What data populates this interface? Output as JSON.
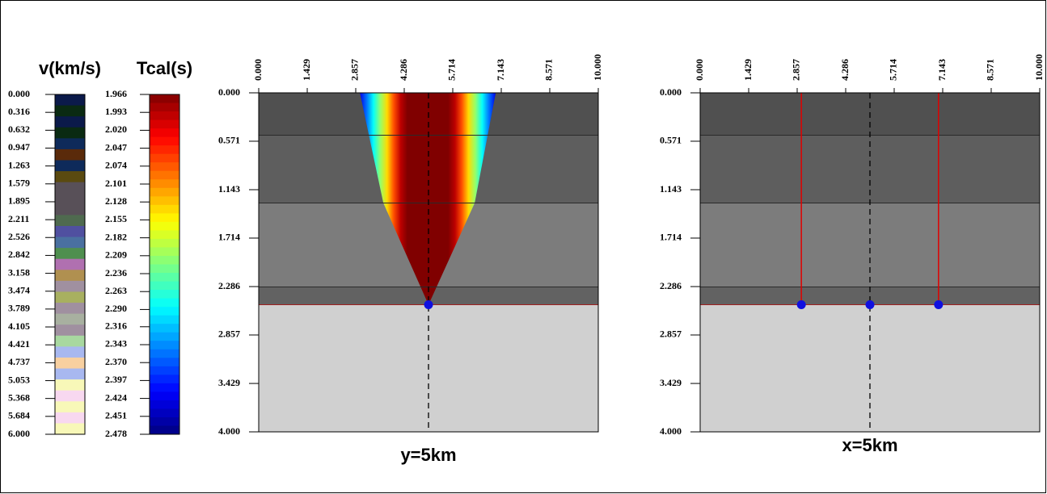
{
  "chart_data": [
    {
      "type": "colorbar",
      "title": "v(km/s)",
      "lim": [
        0,
        6
      ],
      "ticks": [
        {
          "value": 0,
          "label": "0.000"
        },
        0.316,
        0.632,
        0.947,
        1.263,
        1.579,
        1.895,
        2.211,
        2.526,
        2.842,
        3.158,
        3.474,
        3.789,
        4.105,
        4.421,
        4.737,
        5.053,
        5.368,
        5.684,
        {
          "value": 6,
          "label": "6.000"
        }
      ],
      "colors": [
        "#0b1a4a",
        "#0a2a12",
        "#0b1a4a",
        "#0a2a12",
        "#0e2a5a",
        "#5a2a0a",
        "#0e2a5a",
        "#5a4a10",
        "#585058",
        "#585058",
        "#585058",
        "#4f6a4f",
        "#5050a0",
        "#4a70a0",
        "#4f8f4f",
        "#b070b0",
        "#b09050",
        "#a090a0",
        "#a8b060",
        "#a090a0",
        "#a8b0a0",
        "#a090a0",
        "#a8d8a0",
        "#a8b8f0",
        "#f8d0a0",
        "#a8b8f0",
        "#f8f8b8",
        "#f8d8f0",
        "#f8f8b8",
        "#f8d8f0",
        "#f8f8b8"
      ]
    },
    {
      "type": "colorbar",
      "title": "Tcal(s)",
      "lim": [
        1.966,
        2.478
      ],
      "colormap": "jet_r",
      "ticks": [
        1.966,
        1.993,
        {
          "value": 2.02,
          "label": "2.020"
        },
        2.047,
        2.074,
        2.101,
        2.128,
        2.155,
        2.182,
        2.209,
        2.236,
        2.263,
        {
          "value": 2.29,
          "label": "2.290"
        },
        2.316,
        2.343,
        {
          "value": 2.37,
          "label": "2.370"
        },
        2.397,
        2.424,
        2.451,
        2.478
      ]
    },
    {
      "type": "section",
      "caption": "y=5km",
      "xlim": [
        0,
        10
      ],
      "ylim": [
        0,
        4
      ],
      "xticks": [
        {
          "value": 0,
          "label": "0.000"
        },
        1.429,
        2.857,
        4.286,
        5.714,
        7.143,
        8.571,
        {
          "value": 10,
          "label": "10.000"
        }
      ],
      "yticks": [
        {
          "value": 0,
          "label": "0.000"
        },
        0.571,
        1.143,
        1.714,
        2.286,
        2.857,
        3.429,
        {
          "value": 4,
          "label": "4.000"
        }
      ],
      "layer_tops": [
        0,
        0.5,
        1.3,
        2.29,
        2.5
      ],
      "layer_colors": [
        "#505050",
        "#5e5e5e",
        "#7c7c7c",
        "#626262",
        "#d0d0d0"
      ],
      "fan": {
        "x": [
          2.98,
          3.67,
          5,
          6.36,
          6.98
        ],
        "y": [
          0,
          1.3,
          2.5,
          1.3,
          0
        ]
      },
      "dashed_x": 5,
      "points": {
        "x": [
          5
        ],
        "y": [
          2.5
        ]
      },
      "point_color": "#1010e0"
    },
    {
      "type": "section",
      "caption": "x=5km",
      "xlim": [
        0,
        10
      ],
      "ylim": [
        0,
        4
      ],
      "xticks": [
        {
          "value": 0,
          "label": "0.000"
        },
        1.429,
        2.857,
        4.286,
        5.714,
        7.143,
        8.571,
        {
          "value": 10,
          "label": "10.000"
        }
      ],
      "yticks": [
        {
          "value": 0,
          "label": "0.000"
        },
        0.571,
        1.143,
        1.714,
        2.286,
        2.857,
        3.429,
        {
          "value": 4,
          "label": "4.000"
        }
      ],
      "layer_tops": [
        0,
        0.5,
        1.3,
        2.29,
        2.5
      ],
      "layer_colors": [
        "#505050",
        "#5e5e5e",
        "#7c7c7c",
        "#626262",
        "#d0d0d0"
      ],
      "rays": {
        "x": [
          2.98,
          7.02
        ],
        "y": [
          2.5,
          2.5
        ]
      },
      "ray_color": "#e00000",
      "dashed_x": 5,
      "points": {
        "x": [
          2.98,
          5,
          7.02
        ],
        "y": [
          2.5,
          2.5,
          2.5
        ]
      },
      "point_color": "#1010e0"
    }
  ]
}
